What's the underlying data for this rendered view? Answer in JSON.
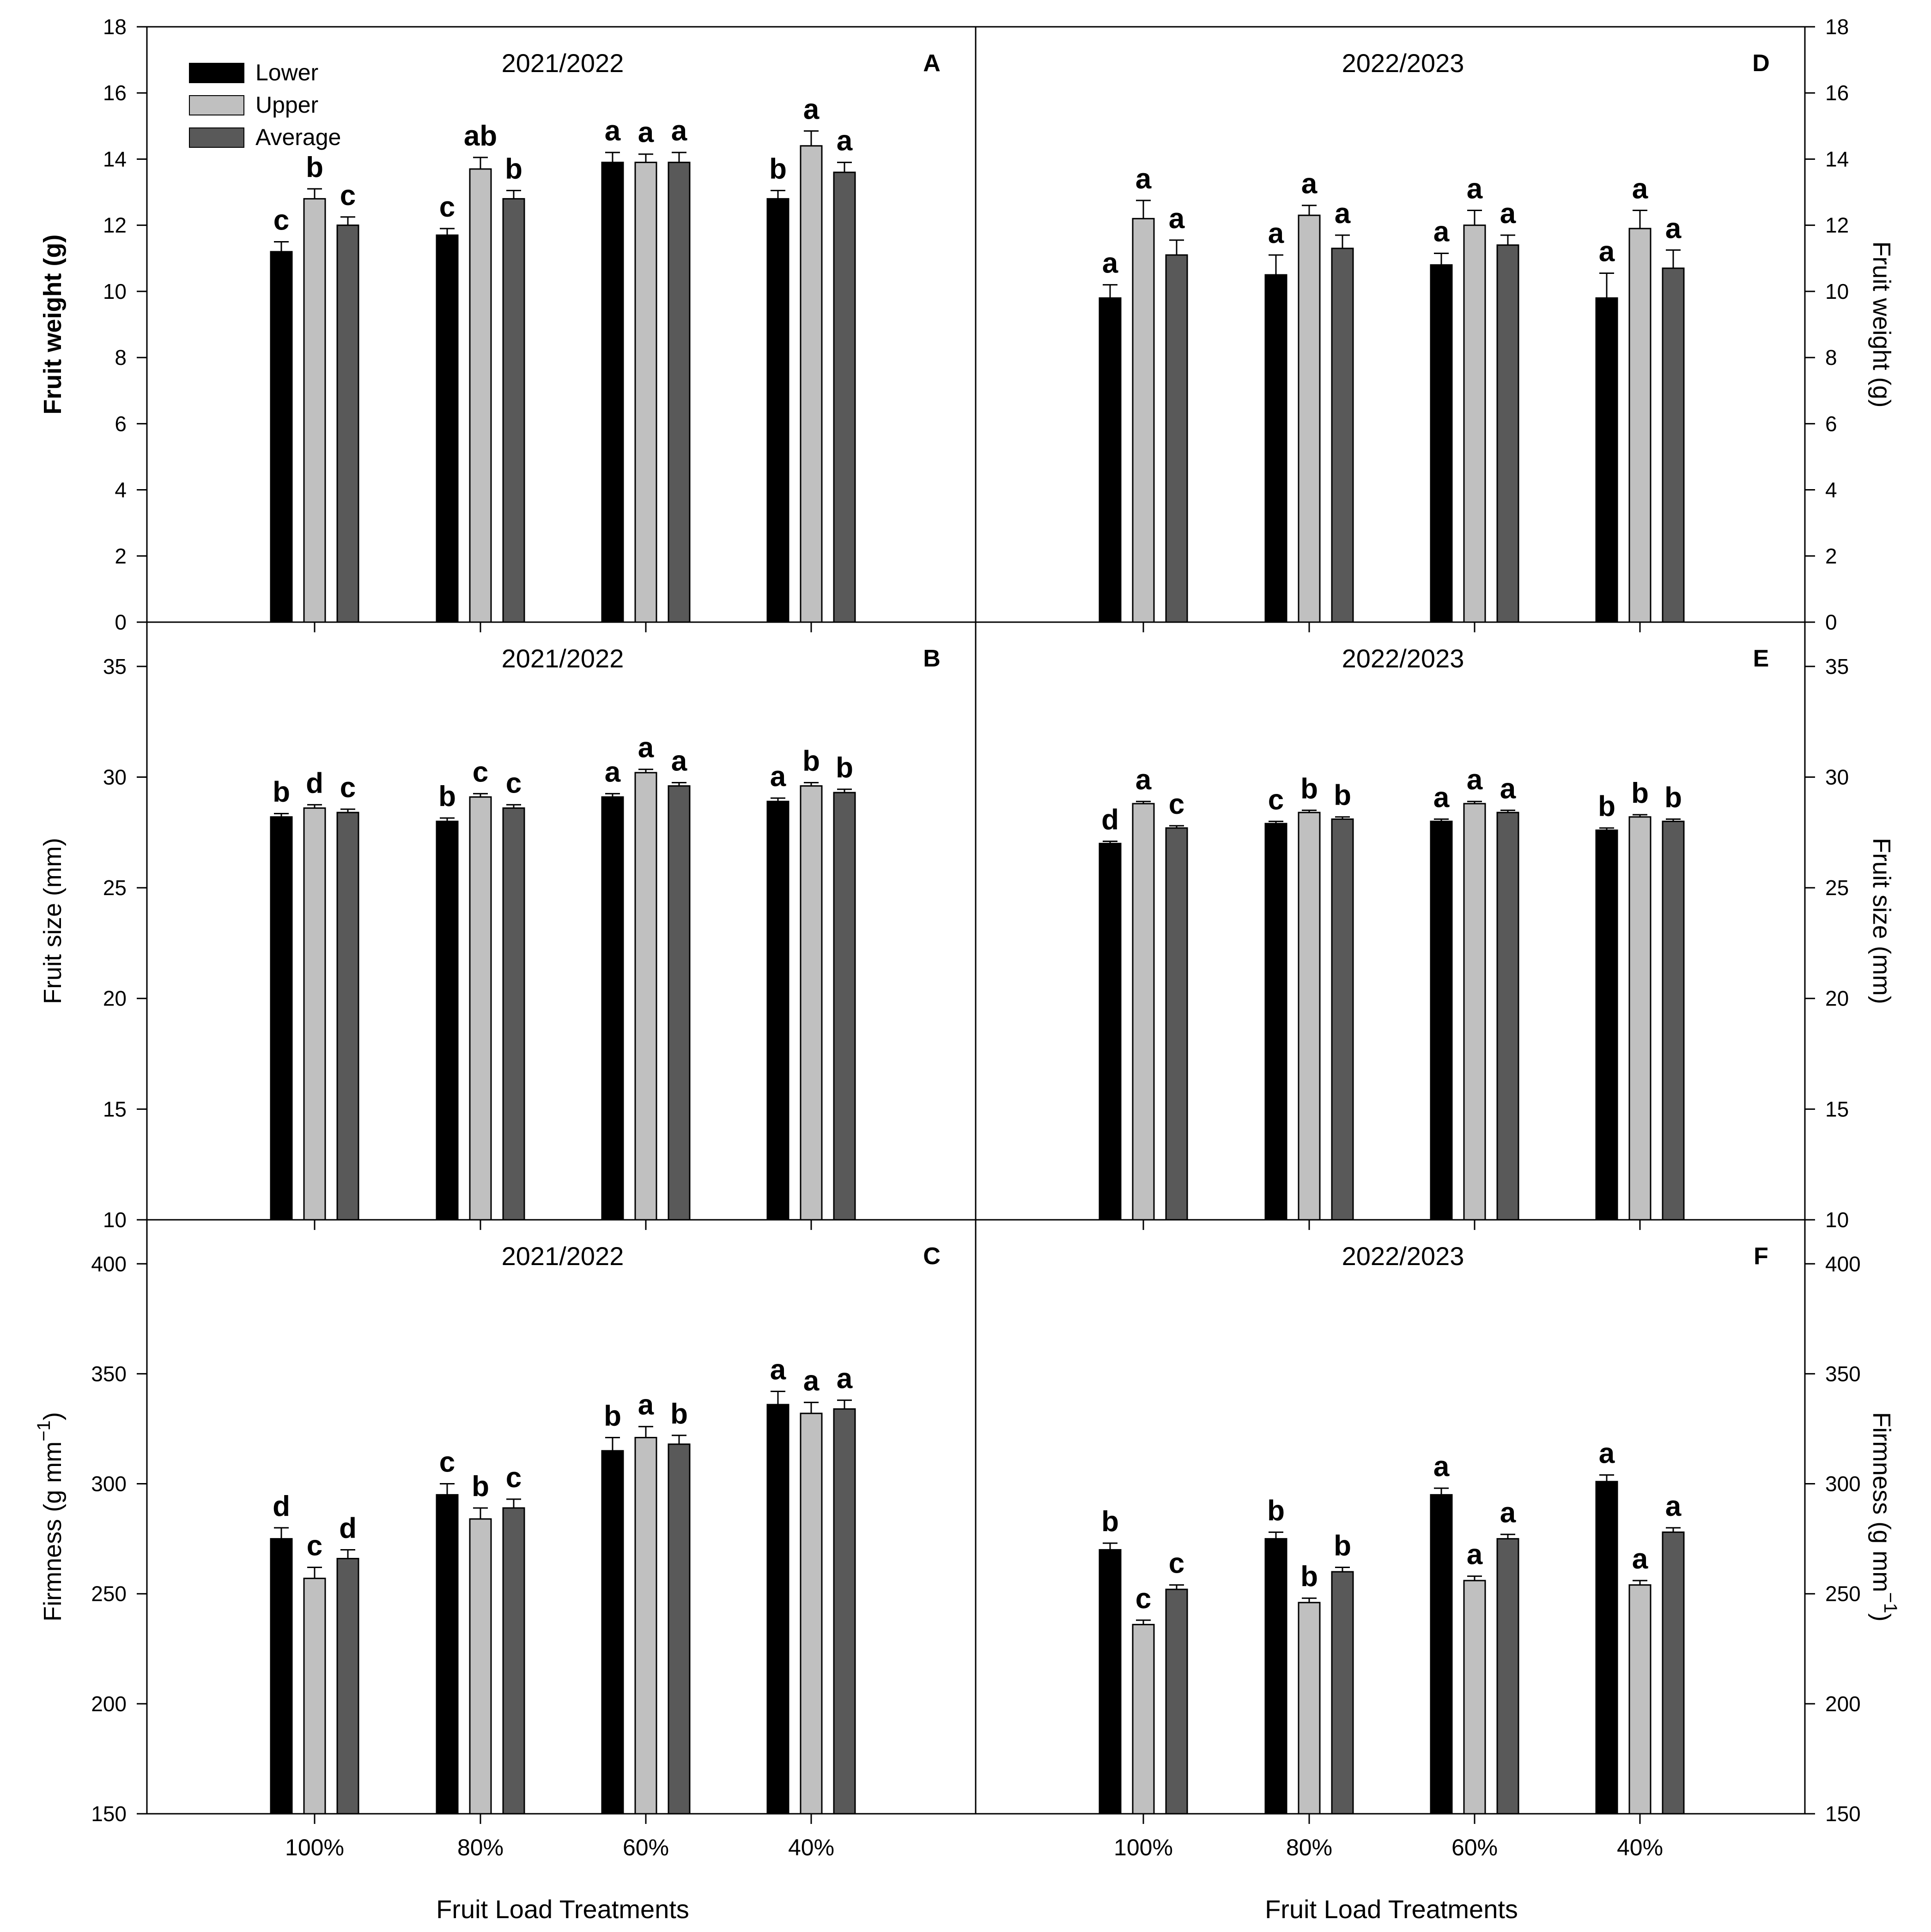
{
  "colors": {
    "Lower": "#000000",
    "Upper": "#c0c0c0",
    "Average": "#595959"
  },
  "chart_data": [
    {
      "id": "A",
      "type": "bar",
      "letter": "A",
      "title": "2021/2022",
      "ylabel": "Fruit weight (g)",
      "ylabel_side": "left",
      "ylabel_bold": true,
      "ylim": [
        0,
        18
      ],
      "yticks": [
        0,
        2,
        4,
        6,
        8,
        10,
        12,
        14,
        16,
        18
      ],
      "categories": [
        "100%",
        "80%",
        "60%",
        "40%"
      ],
      "show_xlabels": false,
      "legend": true,
      "series": [
        {
          "name": "Lower",
          "values": [
            11.2,
            11.7,
            13.9,
            12.8
          ],
          "errors": [
            0.3,
            0.2,
            0.3,
            0.25
          ],
          "letters": [
            "c",
            "c",
            "a",
            "b"
          ]
        },
        {
          "name": "Upper",
          "values": [
            12.8,
            13.7,
            13.9,
            14.4
          ],
          "errors": [
            0.3,
            0.35,
            0.25,
            0.45
          ],
          "letters": [
            "b",
            "ab",
            "a",
            "a"
          ]
        },
        {
          "name": "Average",
          "values": [
            12.0,
            12.8,
            13.9,
            13.6
          ],
          "errors": [
            0.25,
            0.25,
            0.3,
            0.3
          ],
          "letters": [
            "c",
            "b",
            "a",
            "a"
          ]
        }
      ]
    },
    {
      "id": "D",
      "type": "bar",
      "letter": "D",
      "title": "2022/2023",
      "ylabel": "Fruit weight (g)",
      "ylabel_side": "right",
      "ylabel_bold": false,
      "ylim": [
        0,
        18
      ],
      "yticks": [
        0,
        2,
        4,
        6,
        8,
        10,
        12,
        14,
        16,
        18
      ],
      "categories": [
        "100%",
        "80%",
        "60%",
        "40%"
      ],
      "show_xlabels": false,
      "legend": false,
      "series": [
        {
          "name": "Lower",
          "values": [
            9.8,
            10.5,
            10.8,
            9.8
          ],
          "errors": [
            0.4,
            0.6,
            0.35,
            0.75
          ],
          "letters": [
            "a",
            "a",
            "a",
            "a"
          ]
        },
        {
          "name": "Upper",
          "values": [
            12.2,
            12.3,
            12.0,
            11.9
          ],
          "errors": [
            0.55,
            0.3,
            0.45,
            0.55
          ],
          "letters": [
            "a",
            "a",
            "a",
            "a"
          ]
        },
        {
          "name": "Average",
          "values": [
            11.1,
            11.3,
            11.4,
            10.7
          ],
          "errors": [
            0.45,
            0.4,
            0.3,
            0.55
          ],
          "letters": [
            "a",
            "a",
            "a",
            "a"
          ]
        }
      ]
    },
    {
      "id": "B",
      "type": "bar",
      "letter": "B",
      "title": "2021/2022",
      "ylabel": "Fruit size (mm)",
      "ylabel_side": "left",
      "ylabel_bold": false,
      "ylim": [
        10,
        37
      ],
      "yticks": [
        10,
        15,
        20,
        25,
        30,
        35
      ],
      "categories": [
        "100%",
        "80%",
        "60%",
        "40%"
      ],
      "show_xlabels": false,
      "legend": false,
      "series": [
        {
          "name": "Lower",
          "values": [
            28.2,
            28.0,
            29.1,
            28.9
          ],
          "errors": [
            0.15,
            0.15,
            0.15,
            0.15
          ],
          "letters": [
            "b",
            "b",
            "a",
            "a"
          ]
        },
        {
          "name": "Upper",
          "values": [
            28.6,
            29.1,
            30.2,
            29.6
          ],
          "errors": [
            0.15,
            0.15,
            0.15,
            0.15
          ],
          "letters": [
            "d",
            "c",
            "a",
            "b"
          ]
        },
        {
          "name": "Average",
          "values": [
            28.4,
            28.6,
            29.6,
            29.3
          ],
          "errors": [
            0.15,
            0.15,
            0.15,
            0.15
          ],
          "letters": [
            "c",
            "c",
            "a",
            "b"
          ]
        }
      ]
    },
    {
      "id": "E",
      "type": "bar",
      "letter": "E",
      "title": "2022/2023",
      "ylabel": "Fruit size (mm)",
      "ylabel_side": "right",
      "ylabel_bold": false,
      "ylim": [
        10,
        37
      ],
      "yticks": [
        10,
        15,
        20,
        25,
        30,
        35
      ],
      "categories": [
        "100%",
        "80%",
        "60%",
        "40%"
      ],
      "show_xlabels": false,
      "legend": false,
      "series": [
        {
          "name": "Lower",
          "values": [
            27.0,
            27.9,
            28.0,
            27.6
          ],
          "errors": [
            0.1,
            0.1,
            0.1,
            0.1
          ],
          "letters": [
            "d",
            "c",
            "a",
            "b"
          ]
        },
        {
          "name": "Upper",
          "values": [
            28.8,
            28.4,
            28.8,
            28.2
          ],
          "errors": [
            0.1,
            0.1,
            0.1,
            0.1
          ],
          "letters": [
            "a",
            "b",
            "a",
            "b"
          ]
        },
        {
          "name": "Average",
          "values": [
            27.7,
            28.1,
            28.4,
            28.0
          ],
          "errors": [
            0.1,
            0.1,
            0.1,
            0.1
          ],
          "letters": [
            "c",
            "b",
            "a",
            "b"
          ]
        }
      ]
    },
    {
      "id": "C",
      "type": "bar",
      "letter": "C",
      "title": "2021/2022",
      "ylabel": "Firmness (g mm",
      "ylabel_sup": "−1",
      "ylabel_end": ")",
      "ylabel_side": "left",
      "ylabel_bold": false,
      "ylim": [
        150,
        420
      ],
      "yticks": [
        150,
        200,
        250,
        300,
        350,
        400
      ],
      "categories": [
        "100%",
        "80%",
        "60%",
        "40%"
      ],
      "show_xlabels": true,
      "xlabel": "Fruit Load Treatments",
      "legend": false,
      "series": [
        {
          "name": "Lower",
          "values": [
            275,
            295,
            315,
            336
          ],
          "errors": [
            5,
            5,
            6,
            6
          ],
          "letters": [
            "d",
            "c",
            "b",
            "a"
          ]
        },
        {
          "name": "Upper",
          "values": [
            257,
            284,
            321,
            332
          ],
          "errors": [
            5,
            5,
            5,
            5
          ],
          "letters": [
            "c",
            "b",
            "a",
            "a"
          ]
        },
        {
          "name": "Average",
          "values": [
            266,
            289,
            318,
            334
          ],
          "errors": [
            4,
            4,
            4,
            4
          ],
          "letters": [
            "d",
            "c",
            "b",
            "a"
          ]
        }
      ]
    },
    {
      "id": "F",
      "type": "bar",
      "letter": "F",
      "title": "2022/2023",
      "ylabel": "Firmness (g mm",
      "ylabel_sup": "−1",
      "ylabel_end": ")",
      "ylabel_side": "right",
      "ylabel_bold": false,
      "ylim": [
        150,
        420
      ],
      "yticks": [
        150,
        200,
        250,
        300,
        350,
        400
      ],
      "categories": [
        "100%",
        "80%",
        "60%",
        "40%"
      ],
      "show_xlabels": true,
      "xlabel": "Fruit Load Treatments",
      "legend": false,
      "series": [
        {
          "name": "Lower",
          "values": [
            270,
            275,
            295,
            301
          ],
          "errors": [
            3,
            3,
            3,
            3
          ],
          "letters": [
            "b",
            "b",
            "a",
            "a"
          ]
        },
        {
          "name": "Upper",
          "values": [
            236,
            246,
            256,
            254
          ],
          "errors": [
            2,
            2,
            2,
            2
          ],
          "letters": [
            "c",
            "b",
            "a",
            "a"
          ]
        },
        {
          "name": "Average",
          "values": [
            252,
            260,
            275,
            278
          ],
          "errors": [
            2,
            2,
            2,
            2
          ],
          "letters": [
            "c",
            "b",
            "a",
            "a"
          ]
        }
      ]
    }
  ]
}
